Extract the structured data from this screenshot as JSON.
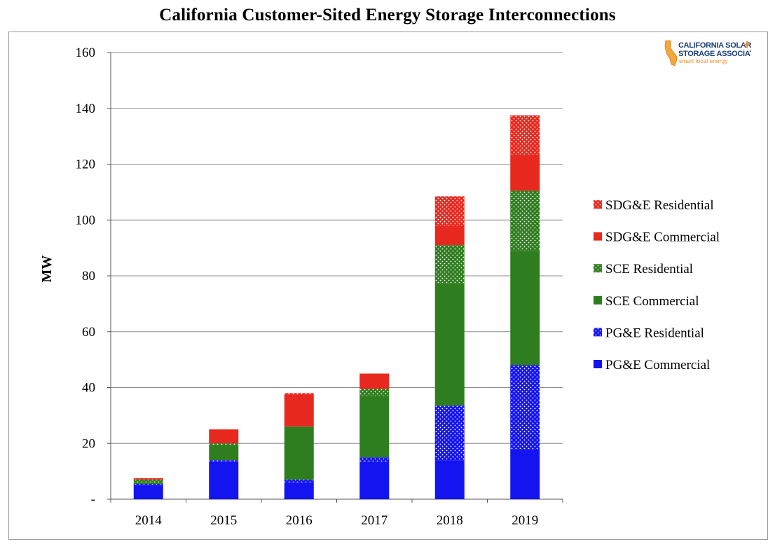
{
  "colors": {
    "pge_commercial": "#1414f0",
    "pge_residential": "#1414f0",
    "sce_commercial": "#2e7d1e",
    "sce_residential": "#2e7d1e",
    "sdge_commercial": "#e8291f",
    "sdge_residential": "#e8291f"
  },
  "logo": {
    "line1": "CALIFORNIA SOLAR",
    "line2": "STORAGE ASSOCIATION",
    "tagline": "smart local energy",
    "plus": "+"
  },
  "chart_data": {
    "type": "bar",
    "stacked": true,
    "title": "California Customer-Sited Energy Storage Interconnections",
    "xlabel": "",
    "ylabel": "MW",
    "ylim": [
      0,
      160
    ],
    "yticks": [
      {
        "value": 0,
        "label": "-"
      },
      {
        "value": 20,
        "label": "20"
      },
      {
        "value": 40,
        "label": "40"
      },
      {
        "value": 60,
        "label": "60"
      },
      {
        "value": 80,
        "label": "80"
      },
      {
        "value": 100,
        "label": "100"
      },
      {
        "value": 120,
        "label": "120"
      },
      {
        "value": 140,
        "label": "140"
      },
      {
        "value": 160,
        "label": "160"
      }
    ],
    "grid": true,
    "legend_position": "right",
    "categories": [
      "2014",
      "2015",
      "2016",
      "2017",
      "2018",
      "2019"
    ],
    "series": [
      {
        "name": "PG&E Commercial",
        "pattern": "solid",
        "color_key": "pge_commercial",
        "values": [
          5,
          13.5,
          6,
          13.5,
          14,
          18
        ]
      },
      {
        "name": "PG&E Residential",
        "pattern": "dotted",
        "color_key": "pge_residential",
        "values": [
          0.5,
          0.5,
          1,
          1.5,
          19.5,
          30
        ]
      },
      {
        "name": "SCE Commercial",
        "pattern": "solid",
        "color_key": "sce_commercial",
        "values": [
          0.5,
          5.5,
          19,
          22,
          43.5,
          41
        ]
      },
      {
        "name": "SCE Residential",
        "pattern": "dotted",
        "color_key": "sce_residential",
        "values": [
          1,
          0.5,
          0,
          2.5,
          14,
          21.5
        ]
      },
      {
        "name": "SDG&E Commercial",
        "pattern": "solid",
        "color_key": "sdge_commercial",
        "values": [
          0.5,
          5,
          11.5,
          5.5,
          7,
          13
        ]
      },
      {
        "name": "SDG&E Residential",
        "pattern": "dotted",
        "color_key": "sdge_residential",
        "values": [
          0,
          0,
          0.5,
          0,
          10.5,
          14
        ]
      }
    ]
  }
}
